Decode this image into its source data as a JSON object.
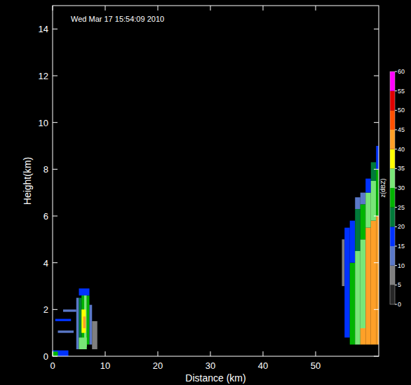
{
  "chart_data": {
    "type": "heatmap",
    "title": "Wed Mar 17 15:54:09 2010",
    "x_label": "Distance (km)",
    "y_label": "Height(km)",
    "xlim": [
      0,
      62
    ],
    "xticks": [
      0,
      10,
      20,
      30,
      40,
      50
    ],
    "ylim": [
      0,
      15
    ],
    "yticks": [
      0,
      2,
      4,
      6,
      8,
      10,
      12,
      14
    ],
    "grid": false,
    "cells": [
      {
        "x": [
          0,
          3
        ],
        "y": [
          0,
          0.25
        ],
        "value": 15
      },
      {
        "x": [
          0,
          1
        ],
        "y": [
          0,
          0.2
        ],
        "value": 25
      },
      {
        "x": [
          0.5,
          3.5
        ],
        "y": [
          1.5,
          1.6
        ],
        "value": 15
      },
      {
        "x": [
          1,
          4
        ],
        "y": [
          1.0,
          1.1
        ],
        "value": 12
      },
      {
        "x": [
          2,
          4.5
        ],
        "y": [
          1.9,
          2.0
        ],
        "value": 12
      },
      {
        "x": [
          4.5,
          5
        ],
        "y": [
          0.3,
          2.5
        ],
        "value": 12
      },
      {
        "x": [
          5,
          5.5
        ],
        "y": [
          0.3,
          2.5
        ],
        "value": 22
      },
      {
        "x": [
          5.5,
          6
        ],
        "y": [
          0.3,
          2.7
        ],
        "value": 27
      },
      {
        "x": [
          6,
          6.5
        ],
        "y": [
          0.4,
          2.8
        ],
        "value": 30
      },
      {
        "x": [
          6.5,
          7
        ],
        "y": [
          0.5,
          2.6
        ],
        "value": 25
      },
      {
        "x": [
          7,
          7.5
        ],
        "y": [
          0.5,
          2.2
        ],
        "value": 12
      },
      {
        "x": [
          7.5,
          8.5
        ],
        "y": [
          0.3,
          1.5
        ],
        "value": 7
      },
      {
        "x": [
          5,
          7
        ],
        "y": [
          2.6,
          2.9
        ],
        "value": 15
      },
      {
        "x": [
          5,
          6.5
        ],
        "y": [
          0.3,
          0.8
        ],
        "value": 32
      },
      {
        "x": [
          5.5,
          6.3
        ],
        "y": [
          1.0,
          2.0
        ],
        "value": 37
      },
      {
        "x": [
          5.8,
          6.3
        ],
        "y": [
          1.2,
          1.7
        ],
        "value": 42
      },
      {
        "x": [
          55,
          55.5
        ],
        "y": [
          3,
          5
        ],
        "value": 7
      },
      {
        "x": [
          55.5,
          56.5
        ],
        "y": [
          0.8,
          5.5
        ],
        "value": 15
      },
      {
        "x": [
          56.5,
          57.5
        ],
        "y": [
          0.5,
          4
        ],
        "value": 28
      },
      {
        "x": [
          56.5,
          57.5
        ],
        "y": [
          4,
          5.8
        ],
        "value": 17
      },
      {
        "x": [
          57.5,
          58.5
        ],
        "y": [
          0.5,
          4.5
        ],
        "value": 32
      },
      {
        "x": [
          57.5,
          58.5
        ],
        "y": [
          4.5,
          6.3
        ],
        "value": 22
      },
      {
        "x": [
          57.5,
          58.5
        ],
        "y": [
          6.3,
          6.8
        ],
        "value": 13
      },
      {
        "x": [
          58.5,
          59.5
        ],
        "y": [
          0.5,
          1.2
        ],
        "value": 42
      },
      {
        "x": [
          58.5,
          59.5
        ],
        "y": [
          1.2,
          5
        ],
        "value": 33
      },
      {
        "x": [
          58.5,
          59.5
        ],
        "y": [
          5,
          6.5
        ],
        "value": 25
      },
      {
        "x": [
          58.5,
          59.5
        ],
        "y": [
          6.5,
          7
        ],
        "value": 14
      },
      {
        "x": [
          59.5,
          60.5
        ],
        "y": [
          0.5,
          5.5
        ],
        "value": 42
      },
      {
        "x": [
          59.5,
          60.5
        ],
        "y": [
          5.5,
          7
        ],
        "value": 30
      },
      {
        "x": [
          59.5,
          60.5
        ],
        "y": [
          7,
          7.6
        ],
        "value": 16
      },
      {
        "x": [
          60.5,
          61.5
        ],
        "y": [
          0.5,
          5.8
        ],
        "value": 43
      },
      {
        "x": [
          60.5,
          61.5
        ],
        "y": [
          5.8,
          7.5
        ],
        "value": 30
      },
      {
        "x": [
          60.5,
          61.5
        ],
        "y": [
          7.5,
          8.3
        ],
        "value": 20
      },
      {
        "x": [
          61.5,
          62
        ],
        "y": [
          0.5,
          6
        ],
        "value": 42
      },
      {
        "x": [
          61.5,
          62
        ],
        "y": [
          6,
          8
        ],
        "value": 28
      },
      {
        "x": [
          61.5,
          62
        ],
        "y": [
          8,
          9
        ],
        "value": 18
      }
    ],
    "colorbar": {
      "label": "z(dBZ)",
      "range": [
        0,
        60
      ],
      "ticks": [
        0,
        5,
        10,
        15,
        20,
        25,
        30,
        35,
        40,
        45,
        50,
        55,
        60
      ],
      "colors": [
        "#262626",
        "#7f7f7f",
        "#5a78c8",
        "#0032ff",
        "#007a3a",
        "#00b400",
        "#78e678",
        "#ffff00",
        "#ffa028",
        "#ff5000",
        "#e00000",
        "#ff00ff"
      ]
    }
  }
}
